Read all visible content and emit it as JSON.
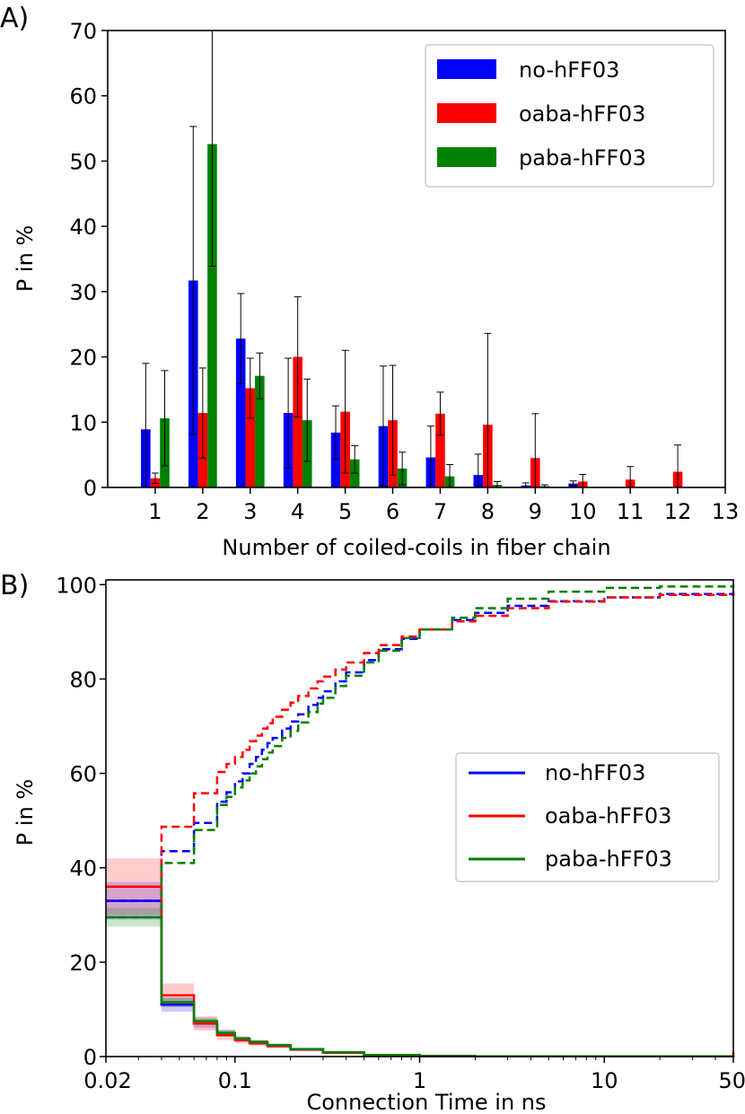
{
  "chart_data": [
    {
      "panel_label": "A)",
      "type": "bar",
      "xlabel": "Number of coiled-coils in fiber chain",
      "ylabel": "P in %",
      "xlim": [
        0,
        13
      ],
      "ylim": [
        0,
        70
      ],
      "xticks": [
        "1",
        "2",
        "3",
        "4",
        "5",
        "6",
        "7",
        "8",
        "9",
        "10",
        "11",
        "12",
        "13"
      ],
      "yticks": [
        "0",
        "10",
        "20",
        "30",
        "40",
        "50",
        "60",
        "70"
      ],
      "legend_position": "top-right",
      "grid": false,
      "categories": [
        1,
        2,
        3,
        4,
        5,
        6,
        7,
        8,
        9,
        10,
        11,
        12
      ],
      "series": [
        {
          "name": "no-hFF03",
          "color": "#0000ff",
          "values": [
            8.9,
            31.7,
            22.8,
            11.4,
            8.4,
            9.4,
            4.6,
            1.9,
            0.3,
            0.6,
            0,
            0
          ],
          "errors": [
            10.1,
            23.6,
            6.9,
            8.4,
            4.1,
            9.2,
            4.8,
            3.2,
            0.4,
            0.4,
            0,
            0
          ]
        },
        {
          "name": "oaba-hFF03",
          "color": "#ff0000",
          "values": [
            1.4,
            11.4,
            15.2,
            20.0,
            11.6,
            10.3,
            11.3,
            9.6,
            4.5,
            0.9,
            1.2,
            2.4
          ],
          "errors": [
            0.8,
            6.9,
            4.6,
            9.2,
            9.4,
            8.4,
            3.3,
            14.0,
            6.8,
            1.1,
            2.0,
            4.1
          ]
        },
        {
          "name": "paba-hFF03",
          "color": "#008000",
          "values": [
            10.6,
            52.6,
            17.1,
            10.3,
            4.3,
            2.9,
            1.7,
            0.4,
            0.2,
            0,
            0,
            0
          ],
          "errors": [
            7.3,
            18.7,
            3.5,
            6.3,
            2.1,
            2.5,
            1.8,
            0.5,
            0.2,
            0,
            0,
            0
          ]
        }
      ]
    },
    {
      "panel_label": "B)",
      "type": "line",
      "xlabel": "Connection Time in ns",
      "ylabel": "P in %",
      "xscale": "log",
      "xlim": [
        0.02,
        50
      ],
      "ylim": [
        0,
        101
      ],
      "xticks": [
        "0.02",
        "0.1",
        "1",
        "10",
        "50"
      ],
      "yticks": [
        "0",
        "20",
        "40",
        "60",
        "80",
        "100"
      ],
      "legend_position": "center-right",
      "grid": false,
      "series": [
        {
          "name": "no-hFF03",
          "color": "#0000ff",
          "distribution": {
            "x": [
              0.02,
              0.04,
              0.06,
              0.08,
              0.1,
              0.12,
              0.15,
              0.2,
              0.3,
              0.5,
              1,
              2,
              50
            ],
            "y": [
              33,
              11,
              7,
              5,
              3.6,
              3,
              2.3,
              1.5,
              0.8,
              0.3,
              0.1,
              0.05,
              0.05
            ],
            "band": [
              4,
              1.5,
              1,
              0.7,
              0.6,
              0.5,
              0.4,
              0.3,
              0.2,
              0.1,
              0.05,
              0.05,
              0.05
            ]
          },
          "cumulative": {
            "x": [
              0.02,
              0.04,
              0.06,
              0.08,
              0.09,
              0.1,
              0.11,
              0.12,
              0.13,
              0.14,
              0.15,
              0.16,
              0.18,
              0.2,
              0.22,
              0.25,
              0.28,
              0.3,
              0.35,
              0.4,
              0.5,
              0.6,
              0.8,
              1,
              1.5,
              2,
              3,
              5,
              10,
              20,
              50
            ],
            "y": [
              33,
              43.5,
              49.5,
              54,
              56,
              58.3,
              60,
              62,
              63.5,
              65,
              66.4,
              67.5,
              69.5,
              71,
              72.5,
              74.5,
              76,
              77.4,
              79.5,
              81.4,
              84,
              86.3,
              88.5,
              90.5,
              92.5,
              94,
              95.5,
              96.5,
              97.3,
              98,
              98.6
            ]
          }
        },
        {
          "name": "oaba-hFF03",
          "color": "#ff0000",
          "distribution": {
            "x": [
              0.02,
              0.04,
              0.06,
              0.08,
              0.1,
              0.12,
              0.15,
              0.2,
              0.3,
              0.5,
              1,
              2,
              50
            ],
            "y": [
              36,
              13,
              7,
              4.5,
              3.5,
              2.8,
              2.2,
              1.5,
              0.8,
              0.3,
              0.1,
              0.05,
              1
            ],
            "band": [
              6,
              2.5,
              1.5,
              1,
              0.7,
              0.6,
              0.5,
              0.3,
              0.2,
              0.1,
              0.05,
              0.05,
              0.5
            ]
          },
          "cumulative": {
            "x": [
              0.02,
              0.04,
              0.06,
              0.08,
              0.09,
              0.1,
              0.11,
              0.12,
              0.13,
              0.14,
              0.15,
              0.16,
              0.18,
              0.2,
              0.22,
              0.25,
              0.28,
              0.3,
              0.35,
              0.4,
              0.5,
              0.6,
              0.8,
              1,
              1.5,
              2,
              3,
              5,
              10,
              20,
              50
            ],
            "y": [
              36,
              48.7,
              55.8,
              60.3,
              62,
              63.5,
              65,
              66.8,
              68,
              69.5,
              70.6,
              72,
              73.5,
              75,
              76.4,
              78,
              79.5,
              80.5,
              82,
              83.5,
              85.5,
              87.2,
              89,
              90.5,
              92.2,
              93.4,
              95,
              96.4,
              97.3,
              97.8,
              98.4
            ]
          }
        },
        {
          "name": "paba-hFF03",
          "color": "#008000",
          "distribution": {
            "x": [
              0.02,
              0.04,
              0.06,
              0.08,
              0.1,
              0.12,
              0.15,
              0.2,
              0.3,
              0.5,
              1,
              2,
              50
            ],
            "y": [
              29.5,
              11.5,
              7.5,
              5,
              3.8,
              3.1,
              2.4,
              1.6,
              0.9,
              0.3,
              0.1,
              0.05,
              0.05
            ],
            "band": [
              2,
              1,
              0.8,
              0.6,
              0.5,
              0.4,
              0.3,
              0.2,
              0.1,
              0.1,
              0.05,
              0.05,
              0.05
            ]
          },
          "cumulative": {
            "x": [
              0.02,
              0.04,
              0.06,
              0.08,
              0.09,
              0.1,
              0.11,
              0.12,
              0.13,
              0.14,
              0.15,
              0.16,
              0.18,
              0.2,
              0.22,
              0.25,
              0.28,
              0.3,
              0.35,
              0.4,
              0.5,
              0.6,
              0.8,
              1,
              1.5,
              2,
              3,
              5,
              10,
              20,
              50
            ],
            "y": [
              29.5,
              41,
              48,
              53.3,
              55,
              57,
              58.5,
              60,
              61.5,
              63,
              64.4,
              65.8,
              67.5,
              69,
              70.8,
              73,
              74.8,
              76,
              78.5,
              80.7,
              83.5,
              86,
              88.7,
              90.5,
              93,
              95,
              97,
              98.5,
              99.3,
              99.6,
              99.9
            ]
          }
        }
      ]
    }
  ]
}
